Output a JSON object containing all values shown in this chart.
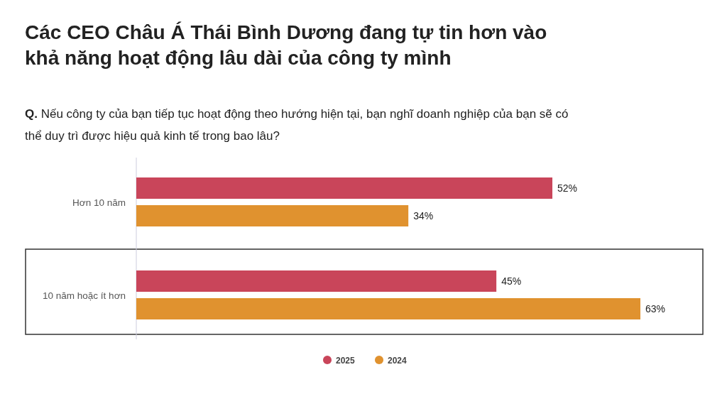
{
  "chart_data": {
    "type": "bar",
    "orientation": "horizontal",
    "title": "Các CEO Châu Á Thái Bình Dương đang tự tin hơn vào khả năng hoạt động lâu dài của công ty mình",
    "subtitle": "Q. Nếu công ty của bạn tiếp tục hoạt động theo hướng hiện tại, bạn nghĩ doanh nghiệp của bạn sẽ có thể duy trì được hiệu quả kinh tế trong bao lâu?",
    "categories": [
      "Hơn 10 năm",
      "10 năm hoặc ít hơn"
    ],
    "series": [
      {
        "name": "2025",
        "color": "#c9455a",
        "values": [
          52,
          45
        ],
        "value_labels": [
          "52%",
          "45%"
        ]
      },
      {
        "name": "2024",
        "color": "#e0922f",
        "values": [
          34,
          63
        ],
        "value_labels": [
          "34%",
          "63%"
        ]
      }
    ],
    "legend": "bottom"
  }
}
